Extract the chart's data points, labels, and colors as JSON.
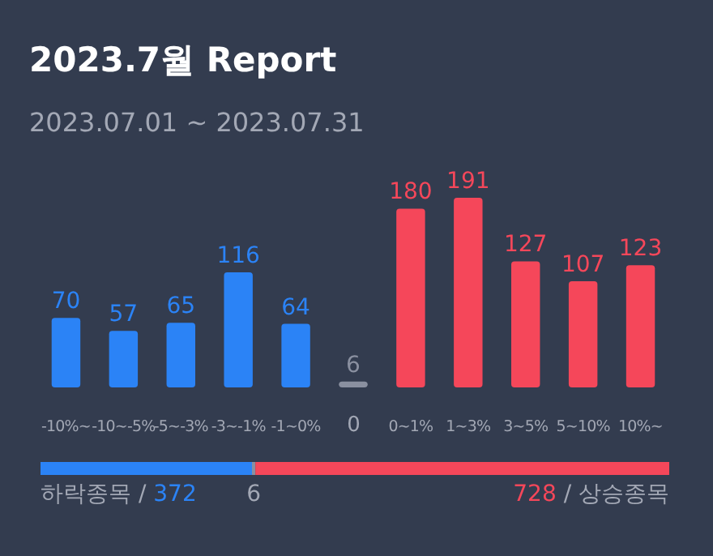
{
  "chart_data": [
    {
      "type": "bar",
      "title": "2023.7월 Report",
      "subtitle": "2023.07.01 ~ 2023.07.31",
      "categories": [
        "-10%~",
        "-10~-5%",
        "-5~-3%",
        "-3~-1%",
        "-1~0%",
        "0",
        "0~1%",
        "1~3%",
        "3~5%",
        "5~10%",
        "10%~"
      ],
      "values": [
        70,
        57,
        65,
        116,
        64,
        6,
        180,
        191,
        127,
        107,
        123
      ],
      "colors": [
        "#2b83f6",
        "#2b83f6",
        "#2b83f6",
        "#2b83f6",
        "#2b83f6",
        "#8a90a0",
        "#f5475a",
        "#f5475a",
        "#f5475a",
        "#f5475a",
        "#f5475a"
      ],
      "data_labels": true
    },
    {
      "type": "bar",
      "orientation": "horizontal",
      "stacked": true,
      "categories": [
        null
      ],
      "series": [
        {
          "color": "#2b83f6",
          "values": [
            372
          ],
          "value_labels": [
            "하락종목 / 372"
          ]
        },
        {
          "color": "#8a90a0",
          "values": [
            6
          ],
          "value_labels": [
            "6"
          ]
        },
        {
          "color": "#f5475a",
          "values": [
            728
          ],
          "value_labels": [
            "728 / 상승종목"
          ]
        }
      ]
    }
  ]
}
